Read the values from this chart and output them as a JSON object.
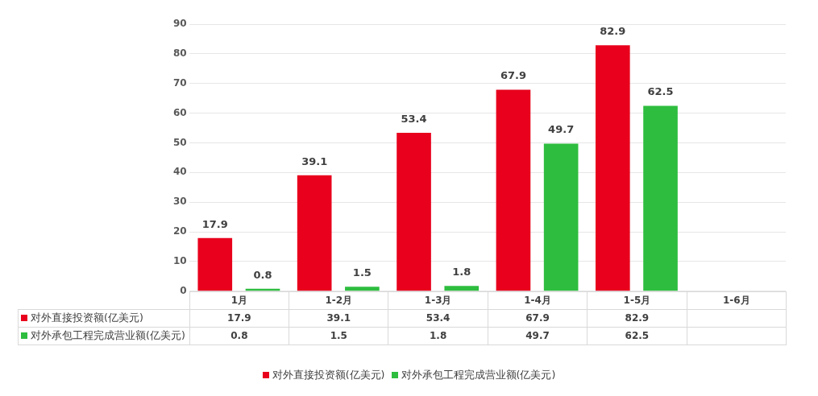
{
  "chart_data": {
    "type": "bar",
    "categories": [
      "1月",
      "1-2月",
      "1-3月",
      "1-4月",
      "1-5月",
      "1-6月"
    ],
    "series": [
      {
        "name": "对外直接投资额(亿美元)",
        "color": "#e8001c",
        "values": [
          17.9,
          39.1,
          53.4,
          67.9,
          82.9,
          null
        ]
      },
      {
        "name": "对外承包工程完成营业额(亿美元)",
        "color": "#2ebd3f",
        "values": [
          0.8,
          1.5,
          1.8,
          49.7,
          62.5,
          null
        ]
      }
    ],
    "annotations": [
      "17.9",
      "0.8",
      "39.1",
      "1.5",
      "53.4",
      "1.8",
      "67.9",
      "49.7",
      "82.9",
      "62.5"
    ],
    "ylim": [
      0,
      90
    ],
    "yticks": [
      0,
      10,
      20,
      30,
      40,
      50,
      60,
      70,
      80,
      90
    ],
    "grid": "y",
    "legend": "bottom",
    "data_labels": true
  }
}
